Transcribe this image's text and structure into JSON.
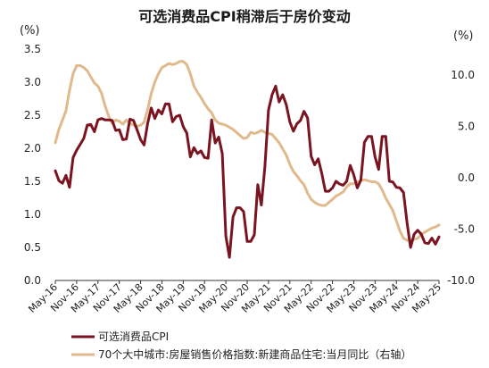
{
  "chart_data": {
    "type": "line",
    "title": "可选消费品CPI稍滞后于房价变动",
    "left_axis": {
      "unit": "(%)",
      "ylim": [
        0.0,
        3.5
      ],
      "ticks": [
        "0.0",
        "0.5",
        "1.0",
        "1.5",
        "2.0",
        "2.5",
        "3.0",
        "3.5"
      ]
    },
    "right_axis": {
      "unit": "(%)",
      "ylim": [
        -10.0,
        12.5
      ],
      "ticks": [
        "-10.0",
        "-5.0",
        "0.0",
        "5.0",
        "10.0"
      ]
    },
    "x_start": "2016-05",
    "x_end": "2025-05",
    "x_ticks": [
      "May-16",
      "Nov-16",
      "May-17",
      "Nov-17",
      "May-18",
      "Nov-18",
      "May-19",
      "Nov-19",
      "May-20",
      "Nov-20",
      "May-21",
      "Nov-21",
      "May-22",
      "Nov-22",
      "May-23",
      "Nov-23",
      "May-24",
      "Nov-24",
      "May-25"
    ],
    "grid": false,
    "legend_position": "bottom-left",
    "colors": {
      "cpi": "#7a1420",
      "house": "#e0b98d"
    },
    "series": [
      {
        "name": "可选消费品CPI",
        "axis": "left",
        "points": [
          [
            "2016-05",
            1.66
          ],
          [
            "2016-06",
            1.51
          ],
          [
            "2016-07",
            1.47
          ],
          [
            "2016-08",
            1.59
          ],
          [
            "2016-09",
            1.41
          ],
          [
            "2016-10",
            1.86
          ],
          [
            "2016-11",
            1.97
          ],
          [
            "2016-12",
            2.06
          ],
          [
            "2017-01",
            2.15
          ],
          [
            "2017-02",
            2.35
          ],
          [
            "2017-03",
            2.36
          ],
          [
            "2017-04",
            2.25
          ],
          [
            "2017-05",
            2.43
          ],
          [
            "2017-06",
            2.45
          ],
          [
            "2017-07",
            2.43
          ],
          [
            "2017-08",
            2.43
          ],
          [
            "2017-09",
            2.42
          ],
          [
            "2017-10",
            2.27
          ],
          [
            "2017-11",
            2.28
          ],
          [
            "2017-12",
            2.13
          ],
          [
            "2018-01",
            2.14
          ],
          [
            "2018-02",
            2.44
          ],
          [
            "2018-03",
            2.42
          ],
          [
            "2018-04",
            2.28
          ],
          [
            "2018-05",
            2.13
          ],
          [
            "2018-06",
            2.05
          ],
          [
            "2018-07",
            2.38
          ],
          [
            "2018-08",
            2.61
          ],
          [
            "2018-09",
            2.45
          ],
          [
            "2018-10",
            2.58
          ],
          [
            "2018-11",
            2.52
          ],
          [
            "2018-12",
            2.67
          ],
          [
            "2019-01",
            2.67
          ],
          [
            "2019-02",
            2.4
          ],
          [
            "2019-03",
            2.48
          ],
          [
            "2019-04",
            2.5
          ],
          [
            "2019-05",
            2.33
          ],
          [
            "2019-06",
            2.23
          ],
          [
            "2019-07",
            1.87
          ],
          [
            "2019-08",
            2.01
          ],
          [
            "2019-09",
            1.92
          ],
          [
            "2019-10",
            1.96
          ],
          [
            "2019-11",
            1.86
          ],
          [
            "2019-12",
            1.85
          ],
          [
            "2020-01",
            2.43
          ],
          [
            "2020-02",
            2.08
          ],
          [
            "2020-03",
            2.17
          ],
          [
            "2020-04",
            1.92
          ],
          [
            "2020-05",
            0.67
          ],
          [
            "2020-06",
            0.35
          ],
          [
            "2020-07",
            0.96
          ],
          [
            "2020-08",
            1.1
          ],
          [
            "2020-09",
            1.1
          ],
          [
            "2020-10",
            1.04
          ],
          [
            "2020-11",
            0.59
          ],
          [
            "2020-12",
            0.59
          ],
          [
            "2021-01",
            0.69
          ],
          [
            "2021-02",
            1.45
          ],
          [
            "2021-03",
            1.14
          ],
          [
            "2021-04",
            1.73
          ],
          [
            "2021-05",
            2.58
          ],
          [
            "2021-06",
            2.81
          ],
          [
            "2021-07",
            2.94
          ],
          [
            "2021-08",
            2.7
          ],
          [
            "2021-09",
            2.81
          ],
          [
            "2021-10",
            2.66
          ],
          [
            "2021-11",
            2.4
          ],
          [
            "2021-12",
            2.26
          ],
          [
            "2022-01",
            2.37
          ],
          [
            "2022-02",
            2.42
          ],
          [
            "2022-03",
            2.56
          ],
          [
            "2022-04",
            2.46
          ],
          [
            "2022-05",
            1.88
          ],
          [
            "2022-06",
            1.75
          ],
          [
            "2022-07",
            1.84
          ],
          [
            "2022-08",
            1.62
          ],
          [
            "2022-09",
            1.35
          ],
          [
            "2022-10",
            1.35
          ],
          [
            "2022-11",
            1.4
          ],
          [
            "2022-12",
            1.5
          ],
          [
            "2023-01",
            1.46
          ],
          [
            "2023-02",
            1.44
          ],
          [
            "2023-03",
            1.5
          ],
          [
            "2023-04",
            1.74
          ],
          [
            "2023-05",
            1.6
          ],
          [
            "2023-06",
            1.4
          ],
          [
            "2023-07",
            1.52
          ],
          [
            "2023-08",
            2.09
          ],
          [
            "2023-09",
            2.18
          ],
          [
            "2023-10",
            2.18
          ],
          [
            "2023-11",
            1.87
          ],
          [
            "2023-12",
            1.68
          ],
          [
            "2024-01",
            2.18
          ],
          [
            "2024-02",
            2.18
          ],
          [
            "2024-03",
            1.5
          ],
          [
            "2024-04",
            1.49
          ],
          [
            "2024-05",
            1.41
          ],
          [
            "2024-06",
            1.4
          ],
          [
            "2024-07",
            1.33
          ],
          [
            "2024-08",
            0.87
          ],
          [
            "2024-09",
            0.5
          ],
          [
            "2024-10",
            0.7
          ],
          [
            "2024-11",
            0.76
          ],
          [
            "2024-12",
            0.7
          ],
          [
            "2025-01",
            0.57
          ],
          [
            "2025-02",
            0.56
          ],
          [
            "2025-03",
            0.64
          ],
          [
            "2025-04",
            0.55
          ],
          [
            "2025-05",
            0.66
          ]
        ]
      },
      {
        "name": "70个大中城市:房屋销售价格指数:新建商品住宅:当月同比（右轴）",
        "axis": "right",
        "points": [
          [
            "2016-05",
            3.4
          ],
          [
            "2016-06",
            4.7
          ],
          [
            "2016-07",
            5.6
          ],
          [
            "2016-08",
            6.5
          ],
          [
            "2016-09",
            8.5
          ],
          [
            "2016-10",
            10.1
          ],
          [
            "2016-11",
            10.9
          ],
          [
            "2016-12",
            10.9
          ],
          [
            "2017-01",
            10.7
          ],
          [
            "2017-02",
            10.4
          ],
          [
            "2017-03",
            9.8
          ],
          [
            "2017-04",
            9.2
          ],
          [
            "2017-05",
            8.9
          ],
          [
            "2017-06",
            8.2
          ],
          [
            "2017-07",
            7.0
          ],
          [
            "2017-08",
            6.0
          ],
          [
            "2017-09",
            5.3
          ],
          [
            "2017-10",
            5.6
          ],
          [
            "2017-11",
            5.5
          ],
          [
            "2017-12",
            5.2
          ],
          [
            "2018-01",
            5.6
          ],
          [
            "2018-02",
            5.3
          ],
          [
            "2018-03",
            5.1
          ],
          [
            "2018-04",
            5.0
          ],
          [
            "2018-05",
            5.1
          ],
          [
            "2018-06",
            5.4
          ],
          [
            "2018-07",
            6.6
          ],
          [
            "2018-08",
            8.2
          ],
          [
            "2018-09",
            9.3
          ],
          [
            "2018-10",
            10.1
          ],
          [
            "2018-11",
            10.7
          ],
          [
            "2018-12",
            10.9
          ],
          [
            "2019-01",
            11.1
          ],
          [
            "2019-02",
            11.0
          ],
          [
            "2019-03",
            11.1
          ],
          [
            "2019-04",
            11.3
          ],
          [
            "2019-05",
            11.3
          ],
          [
            "2019-06",
            11.0
          ],
          [
            "2019-07",
            10.1
          ],
          [
            "2019-08",
            8.9
          ],
          [
            "2019-09",
            8.3
          ],
          [
            "2019-10",
            7.8
          ],
          [
            "2019-11",
            7.2
          ],
          [
            "2019-12",
            6.7
          ],
          [
            "2020-01",
            6.3
          ],
          [
            "2020-02",
            5.6
          ],
          [
            "2020-03",
            5.3
          ],
          [
            "2020-04",
            5.2
          ],
          [
            "2020-05",
            5.1
          ],
          [
            "2020-06",
            4.9
          ],
          [
            "2020-07",
            4.7
          ],
          [
            "2020-08",
            4.4
          ],
          [
            "2020-09",
            4.1
          ],
          [
            "2020-10",
            3.8
          ],
          [
            "2020-11",
            3.9
          ],
          [
            "2020-12",
            4.4
          ],
          [
            "2021-01",
            4.3
          ],
          [
            "2021-02",
            4.4
          ],
          [
            "2021-03",
            4.6
          ],
          [
            "2021-04",
            4.4
          ],
          [
            "2021-05",
            4.3
          ],
          [
            "2021-06",
            4.2
          ],
          [
            "2021-07",
            3.8
          ],
          [
            "2021-08",
            3.4
          ],
          [
            "2021-09",
            2.8
          ],
          [
            "2021-10",
            2.2
          ],
          [
            "2021-11",
            1.3
          ],
          [
            "2021-12",
            0.6
          ],
          [
            "2022-01",
            0.2
          ],
          [
            "2022-02",
            -0.3
          ],
          [
            "2022-03",
            -0.7
          ],
          [
            "2022-04",
            -1.5
          ],
          [
            "2022-05",
            -2.1
          ],
          [
            "2022-06",
            -2.4
          ],
          [
            "2022-07",
            -2.6
          ],
          [
            "2022-08",
            -2.7
          ],
          [
            "2022-09",
            -2.7
          ],
          [
            "2022-10",
            -2.4
          ],
          [
            "2022-11",
            -2.1
          ],
          [
            "2022-12",
            -1.8
          ],
          [
            "2023-01",
            -1.6
          ],
          [
            "2023-02",
            -1.4
          ],
          [
            "2023-03",
            -0.9
          ],
          [
            "2023-04",
            -0.6
          ],
          [
            "2023-05",
            -0.6
          ],
          [
            "2023-06",
            -0.4
          ],
          [
            "2023-07",
            -0.3
          ],
          [
            "2023-08",
            -0.2
          ],
          [
            "2023-09",
            -0.3
          ],
          [
            "2023-10",
            -0.4
          ],
          [
            "2023-11",
            -0.4
          ],
          [
            "2023-12",
            -0.6
          ],
          [
            "2024-01",
            -1.2
          ],
          [
            "2024-02",
            -2.0
          ],
          [
            "2024-03",
            -2.6
          ],
          [
            "2024-04",
            -3.2
          ],
          [
            "2024-05",
            -4.2
          ],
          [
            "2024-06",
            -5.2
          ],
          [
            "2024-07",
            -5.9
          ],
          [
            "2024-08",
            -6.1
          ],
          [
            "2024-09",
            -6.1
          ],
          [
            "2024-10",
            -6.0
          ],
          [
            "2024-11",
            -5.9
          ],
          [
            "2024-12",
            -5.5
          ],
          [
            "2025-01",
            -5.3
          ],
          [
            "2025-02",
            -5.1
          ],
          [
            "2025-03",
            -4.9
          ],
          [
            "2025-04",
            -4.8
          ],
          [
            "2025-05",
            -4.6
          ]
        ]
      }
    ]
  }
}
